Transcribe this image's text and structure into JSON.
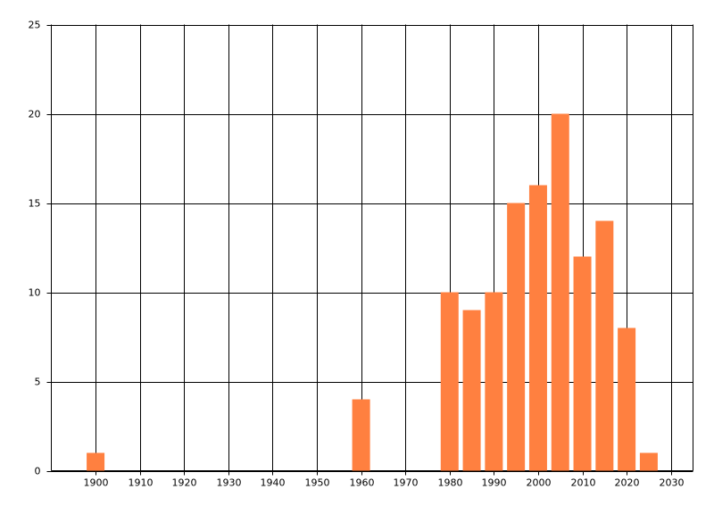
{
  "chart_data": {
    "type": "bar",
    "x": [
      1900,
      1960,
      1980,
      1985,
      1990,
      1995,
      2000,
      2005,
      2010,
      2015,
      2020,
      2025
    ],
    "values": [
      1,
      4,
      10,
      9,
      10,
      15,
      16,
      20,
      12,
      14,
      8,
      1
    ],
    "color": "#ff8040",
    "xlim": [
      1890,
      2035
    ],
    "xticks": [
      1900,
      1910,
      1920,
      1930,
      1940,
      1950,
      1960,
      1970,
      1980,
      1990,
      2000,
      2010,
      2020,
      2030
    ],
    "ylim": [
      0,
      25
    ],
    "yticks": [
      0,
      5,
      10,
      15,
      20,
      25
    ],
    "grid": true
  }
}
